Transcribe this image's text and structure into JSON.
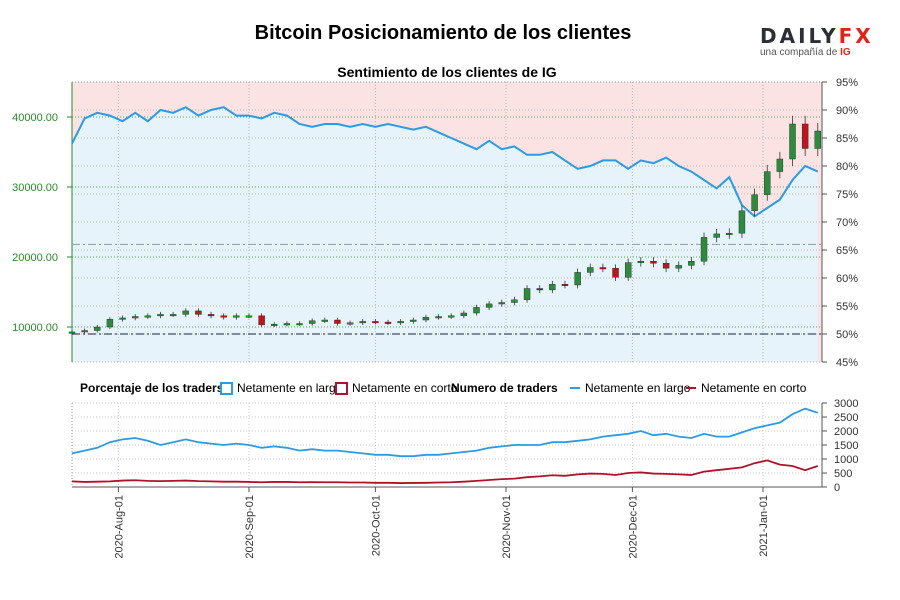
{
  "header": {
    "title": "Bitcoin Posicionamiento de los clientes",
    "subtitle": "Sentimiento de los clientes de IG"
  },
  "logo": {
    "main_prefix": "DAILY",
    "main_suffix": "FX",
    "sub_text": "una compañía de ",
    "sub_brand": "IG"
  },
  "legend": {
    "pct_title": "Porcentaje de los traders",
    "pct_long": "Netamente en largo",
    "pct_short": "Netamente en corto",
    "num_title": "Numero de traders",
    "num_long": "Netamente en largo",
    "num_short": "Netamente en corto"
  },
  "colors": {
    "long": "#2b9be3",
    "short": "#b0122b",
    "long_fill": "#e6f3fb",
    "short_fill": "#fbe3e4",
    "up_candle": "#2e8b3e",
    "down_candle": "#c0141b",
    "axis_green": "#2a8a2a"
  },
  "chart_data": [
    {
      "type": "line",
      "name": "sentiment_and_price",
      "title": "Sentimiento de los clientes de IG",
      "x_dates": [
        "2020-07-21",
        "2020-07-24",
        "2020-07-27",
        "2020-07-30",
        "2020-08-02",
        "2020-08-05",
        "2020-08-08",
        "2020-08-11",
        "2020-08-14",
        "2020-08-17",
        "2020-08-20",
        "2020-08-23",
        "2020-08-26",
        "2020-08-29",
        "2020-09-01",
        "2020-09-04",
        "2020-09-07",
        "2020-09-10",
        "2020-09-13",
        "2020-09-16",
        "2020-09-19",
        "2020-09-22",
        "2020-09-25",
        "2020-09-28",
        "2020-10-01",
        "2020-10-04",
        "2020-10-07",
        "2020-10-10",
        "2020-10-13",
        "2020-10-16",
        "2020-10-19",
        "2020-10-22",
        "2020-10-25",
        "2020-10-28",
        "2020-10-31",
        "2020-11-03",
        "2020-11-06",
        "2020-11-09",
        "2020-11-12",
        "2020-11-15",
        "2020-11-18",
        "2020-11-21",
        "2020-11-24",
        "2020-11-27",
        "2020-11-30",
        "2020-12-03",
        "2020-12-06",
        "2020-12-09",
        "2020-12-12",
        "2020-12-15",
        "2020-12-18",
        "2020-12-21",
        "2020-12-24",
        "2020-12-27",
        "2020-12-30",
        "2021-01-02",
        "2021-01-05",
        "2021-01-08",
        "2021-01-11",
        "2021-01-14"
      ],
      "pct_long": [
        84,
        88.5,
        89.5,
        89,
        88,
        89.5,
        88,
        90,
        89.5,
        90.5,
        89,
        90,
        90.5,
        89,
        89,
        88.5,
        89.5,
        89,
        87.5,
        87,
        87.5,
        87.5,
        87,
        87.5,
        87,
        87.5,
        87,
        86.5,
        87,
        86,
        85,
        84,
        83,
        84.5,
        83,
        83.5,
        82,
        82,
        82.5,
        81,
        79.5,
        80,
        81,
        81,
        79.5,
        81,
        80.5,
        81.5,
        80,
        79,
        77.5,
        76,
        78,
        73,
        71,
        72.5,
        74,
        77.5,
        80,
        79
      ],
      "ylim_pct": [
        45,
        95
      ],
      "price_close": [
        9300,
        9500,
        10000,
        11100,
        11300,
        11500,
        11600,
        11800,
        11800,
        12300,
        11800,
        11600,
        11400,
        11600,
        11600,
        10300,
        10400,
        10500,
        10500,
        10900,
        11000,
        10500,
        10600,
        10800,
        10700,
        10600,
        10800,
        11000,
        11400,
        11500,
        11600,
        12000,
        12800,
        13300,
        13500,
        13900,
        15500,
        15300,
        16100,
        16000,
        17800,
        18500,
        18400,
        17100,
        19200,
        19400,
        19100,
        18400,
        18800,
        19400,
        22800,
        23300,
        23400,
        26600,
        28900,
        32200,
        34000,
        39000,
        35500,
        38000
      ],
      "ylim_price": [
        5000,
        45000
      ],
      "y_ticks_price": [
        "10000.00",
        "20000.00",
        "30000.00",
        "40000.00"
      ],
      "y_ticks_pct": [
        "45%",
        "50%",
        "55%",
        "60%",
        "65%",
        "70%",
        "75%",
        "80%",
        "85%",
        "90%",
        "95%"
      ],
      "x_ticks": [
        "2020-Aug-01",
        "2020-Sep-01",
        "2020-Oct-01",
        "2020-Nov-01",
        "2020-Dec-01",
        "2021-Jan-01"
      ]
    },
    {
      "type": "line",
      "name": "trader_counts",
      "series": [
        {
          "name": "Netamente en largo",
          "values": [
            1200,
            1300,
            1400,
            1600,
            1700,
            1750,
            1650,
            1500,
            1600,
            1700,
            1600,
            1550,
            1500,
            1550,
            1500,
            1400,
            1450,
            1400,
            1300,
            1350,
            1300,
            1300,
            1250,
            1200,
            1150,
            1150,
            1100,
            1100,
            1150,
            1150,
            1200,
            1250,
            1300,
            1400,
            1450,
            1500,
            1500,
            1500,
            1600,
            1600,
            1650,
            1700,
            1800,
            1850,
            1900,
            2000,
            1850,
            1900,
            1800,
            1750,
            1900,
            1800,
            1800,
            1950,
            2100,
            2200,
            2300,
            2600,
            2800,
            2650
          ]
        },
        {
          "name": "Netamente en corto",
          "values": [
            200,
            180,
            190,
            200,
            230,
            240,
            220,
            210,
            220,
            230,
            210,
            200,
            190,
            190,
            180,
            170,
            180,
            180,
            170,
            175,
            170,
            170,
            160,
            160,
            150,
            150,
            140,
            145,
            150,
            160,
            170,
            190,
            220,
            250,
            280,
            300,
            350,
            380,
            420,
            400,
            450,
            480,
            470,
            430,
            500,
            520,
            480,
            470,
            450,
            430,
            550,
            600,
            650,
            700,
            850,
            950,
            800,
            750,
            600,
            750
          ]
        }
      ],
      "ylim": [
        0,
        3000
      ],
      "y_ticks": [
        "0",
        "500",
        "1000",
        "1500",
        "2000",
        "2500",
        "3000"
      ]
    }
  ]
}
